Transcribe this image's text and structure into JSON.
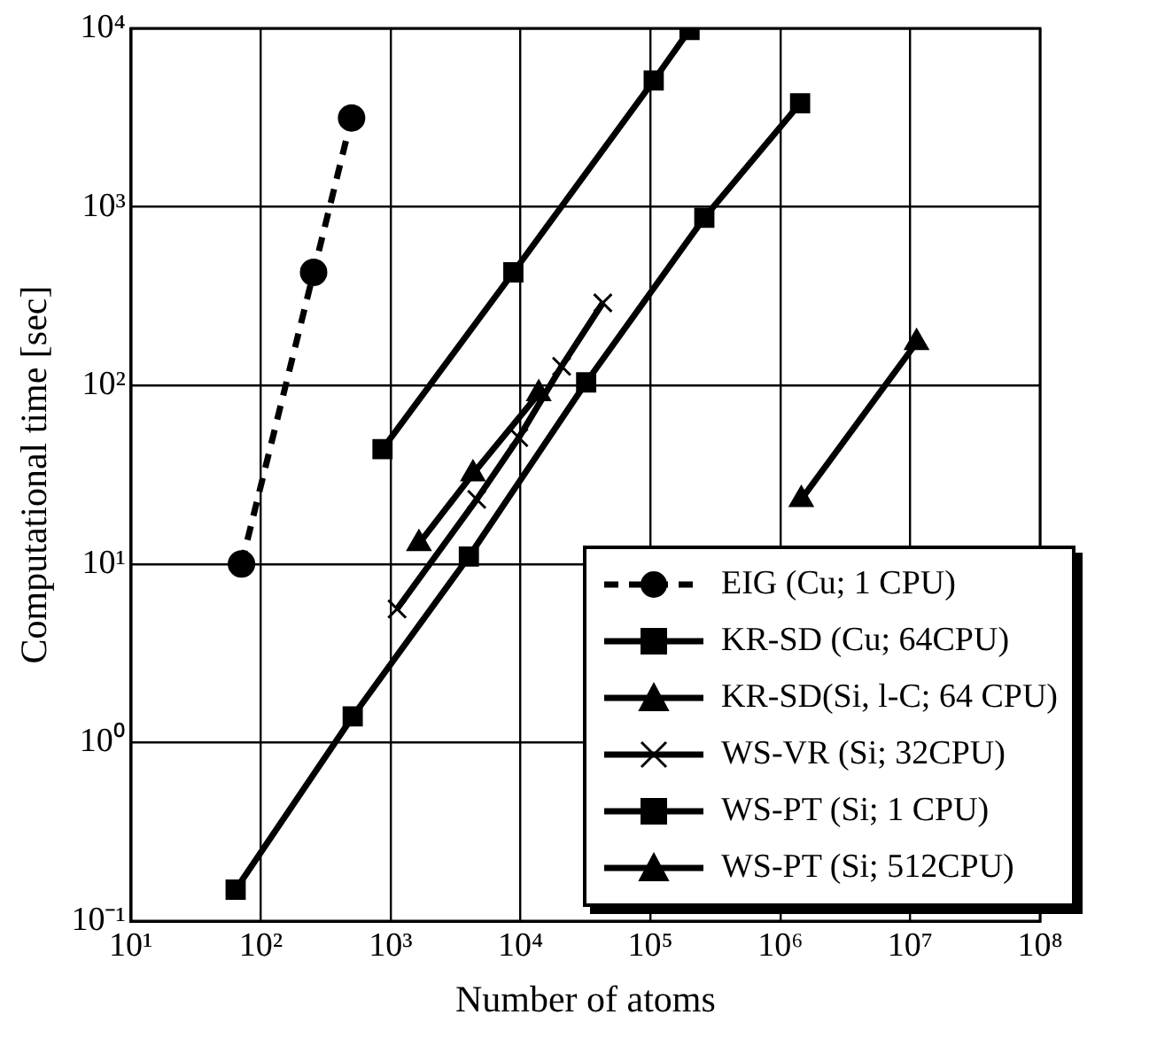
{
  "chart_data": {
    "type": "line",
    "xlabel": "Number of atoms",
    "ylabel": "Computational time [sec]",
    "log": "xy",
    "grid": true,
    "legend": "bottom right",
    "xlim": [
      10,
      100000000
    ],
    "xticks": [
      {
        "value": 10,
        "label": "10¹"
      },
      {
        "value": 100,
        "label": "10²"
      },
      {
        "value": 1000,
        "label": "10³"
      },
      {
        "value": 10000,
        "label": "10⁴"
      },
      {
        "value": 100000,
        "label": "10⁵"
      },
      {
        "value": 1000000,
        "label": "10⁶"
      },
      {
        "value": 10000000,
        "label": "10⁷"
      },
      {
        "value": 100000000,
        "label": "10⁸"
      }
    ],
    "ylim": [
      0.1,
      10000
    ],
    "yticks": [
      {
        "value": 0.1,
        "label": "10⁻¹"
      },
      {
        "value": 1,
        "label": "10⁰"
      },
      {
        "value": 10,
        "label": "10¹"
      },
      {
        "value": 100,
        "label": "10²"
      },
      {
        "value": 1000,
        "label": "10³"
      },
      {
        "value": 10000,
        "label": "10⁴"
      }
    ],
    "series": [
      {
        "name": "EIG (Cu; 1 CPU)",
        "color": "#000000",
        "marker": "circle",
        "line_style": "dashed",
        "x": [
          71,
          255,
          500
        ],
        "values": [
          10,
          430,
          3150
        ]
      },
      {
        "name": "KR-SD (Cu; 64CPU)",
        "color": "#000000",
        "marker": "square",
        "line_style": "solid",
        "x": [
          865,
          8800,
          106000,
          200000
        ],
        "values": [
          44,
          430,
          5100,
          9800
        ]
      },
      {
        "name": "KR-SD(Si, l-C; 64 CPU)",
        "color": "#000000",
        "marker": "triangle",
        "line_style": "solid",
        "x": [
          1650,
          4300,
          13800
        ],
        "values": [
          13,
          32,
          90
        ]
      },
      {
        "name": "WS-VR (Si; 32CPU)",
        "color": "#000000",
        "marker": "cross",
        "line_style": "solid",
        "x": [
          1120,
          4600,
          9700,
          20700,
          43000
        ],
        "values": [
          5.6,
          23,
          51,
          128,
          290
        ]
      },
      {
        "name": "WS-PT (Si; 1 CPU)",
        "color": "#000000",
        "marker": "square",
        "line_style": "solid",
        "x": [
          64,
          510,
          4000,
          32000,
          260000,
          1420000
        ],
        "values": [
          0.15,
          1.4,
          11,
          104,
          870,
          3800
        ]
      },
      {
        "name": "WS-PT (Si; 512CPU)",
        "color": "#000000",
        "marker": "triangle",
        "line_style": "solid",
        "x": [
          1450000,
          11200000
        ],
        "values": [
          23,
          174
        ]
      }
    ]
  }
}
